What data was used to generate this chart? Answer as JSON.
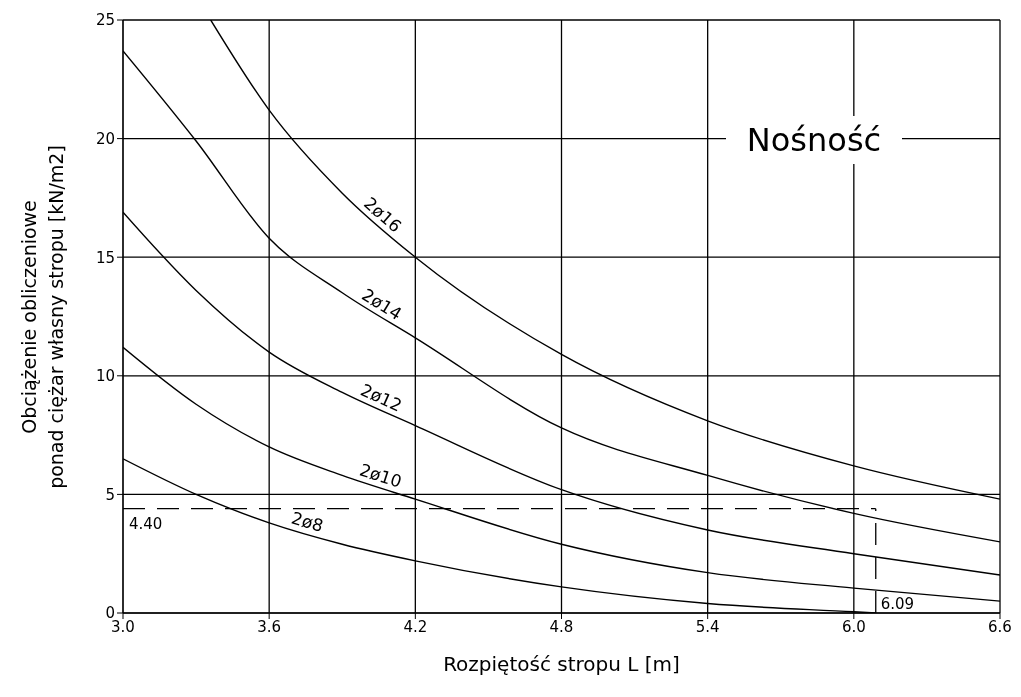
{
  "chart_data": {
    "type": "line",
    "title": "Nośność",
    "xlabel": "Rozpiętość stropu L [m]",
    "ylabel": "Obciążenie obliczeniowe\nponad ciężar własny stropu [kN/m2]",
    "x": [
      3.0,
      3.3,
      3.6,
      3.9,
      4.2,
      4.8,
      5.4,
      6.0,
      6.6
    ],
    "series": [
      {
        "name": "2ø8",
        "color": "#000000",
        "x": [
          3.0,
          3.3,
          3.6,
          3.9,
          4.2,
          4.8,
          5.4,
          6.0,
          6.09
        ],
        "values": [
          6.5,
          5.0,
          3.8,
          2.9,
          2.2,
          1.1,
          0.4,
          0.05,
          0
        ]
      },
      {
        "name": "2ø10",
        "color": "#000000",
        "values": [
          11.2,
          8.8,
          7.0,
          5.8,
          4.8,
          2.9,
          1.7,
          1.05,
          0.5
        ]
      },
      {
        "name": "2ø12",
        "color": "#000000",
        "values": [
          16.9,
          13.6,
          11.0,
          9.3,
          7.9,
          5.2,
          3.5,
          2.5,
          1.6
        ]
      },
      {
        "name": "2ø14",
        "color": "#000000",
        "values": [
          23.7,
          19.9,
          15.8,
          13.5,
          11.6,
          7.8,
          5.8,
          4.2,
          3.0
        ]
      },
      {
        "name": "2ø16",
        "color": "#000000",
        "x": [
          3.36,
          3.6,
          3.9,
          4.2,
          4.8,
          5.4,
          6.0,
          6.6
        ],
        "values": [
          25,
          21.2,
          17.7,
          15.0,
          10.9,
          8.1,
          6.2,
          4.8
        ]
      }
    ],
    "xlim": [
      3.0,
      6.6
    ],
    "xticks": [
      {
        "value": 3.0,
        "label": "3.0"
      },
      {
        "value": 3.6,
        "label": "3.6"
      },
      {
        "value": 4.2,
        "label": "4.2"
      },
      {
        "value": 4.8,
        "label": "4.8"
      },
      {
        "value": 5.4,
        "label": "5.4"
      },
      {
        "value": 6.0,
        "label": "6.0"
      },
      {
        "value": 6.6,
        "label": "6.6"
      }
    ],
    "ylim": [
      0,
      25
    ],
    "yticks": [
      0,
      5,
      10,
      15,
      20,
      25
    ],
    "grid": true,
    "marker": "none",
    "line_style": "solid",
    "ref_lines": [
      {
        "axis": "y",
        "value": 4.4,
        "label": "4.40",
        "color": "#000000",
        "line_style": "dashed"
      },
      {
        "axis": "x",
        "value": 6.09,
        "label": "6.09",
        "color": "#000000",
        "line_style": "dashed"
      }
    ]
  }
}
